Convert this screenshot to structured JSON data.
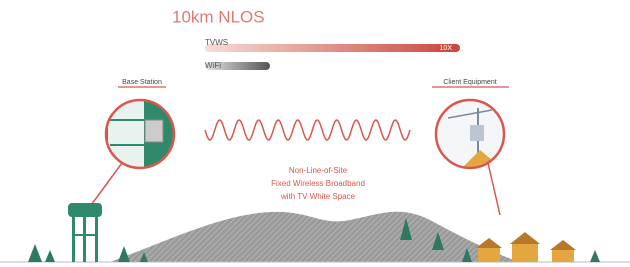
{
  "title": "10km NLOS",
  "bars": [
    {
      "label": "TVWS",
      "end_label": "10X"
    },
    {
      "label": "WiFi"
    }
  ],
  "nodes": [
    {
      "label": "Base Station"
    },
    {
      "label": "Client Equipment"
    }
  ],
  "caption": [
    "Non-Line-of-Site",
    "Fixed Wireless Broadband",
    "with TV White Space"
  ]
}
